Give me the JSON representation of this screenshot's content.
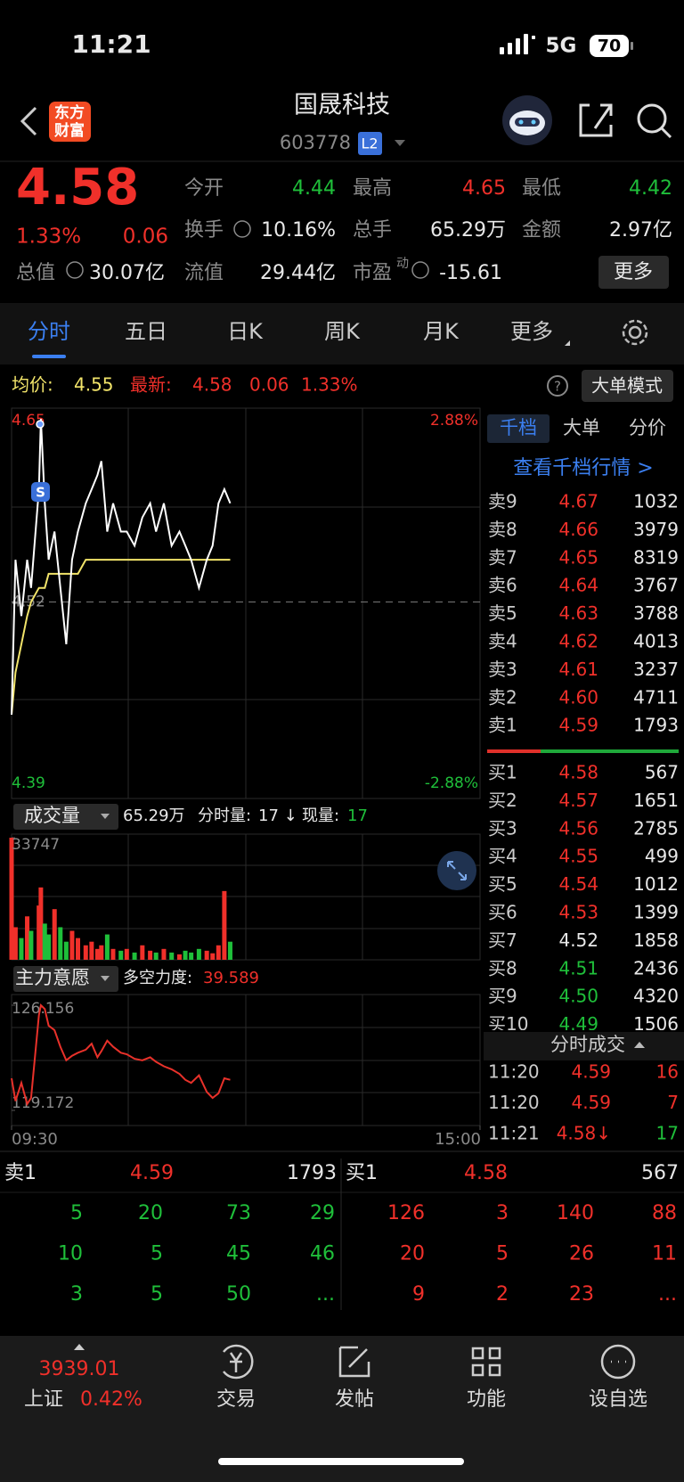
{
  "status": {
    "time": "11:21",
    "network": "5G",
    "battery": "70"
  },
  "header": {
    "logo": [
      "东方",
      "财富"
    ],
    "name": "国晟科技",
    "code": "603778",
    "badge": "L2"
  },
  "quote": {
    "price": "4.58",
    "pct": "1.33%",
    "change": "0.06",
    "rows": [
      [
        {
          "label": "今开",
          "value": 4.44
        },
        {
          "label": "最高",
          "value": 4.65
        },
        {
          "label": "最低",
          "value": 4.42
        }
      ],
      [
        {
          "label": "换手",
          "value": "10.16%"
        },
        {
          "label": "总手",
          "value": "65.29万"
        },
        {
          "label": "金额",
          "value": "2.97亿"
        }
      ]
    ],
    "row3": [
      {
        "label": "总值",
        "value": "30.07亿"
      },
      {
        "label": "流值",
        "value": "29.44亿"
      },
      {
        "label": "市盈",
        "sup": "动",
        "value": "-15.61"
      }
    ],
    "more": "更多"
  },
  "tabs": [
    "分时",
    "五日",
    "日K",
    "周K",
    "月K",
    "更多"
  ],
  "info": {
    "avg_label": "均价:",
    "avg": "4.55",
    "last_label": "最新:",
    "last": "4.58",
    "change": "0.06",
    "pct": "1.33%",
    "mode": "大单模式"
  },
  "chart_data": [
    {
      "type": "line",
      "x": [
        0,
        2,
        5,
        8,
        10,
        14,
        15,
        17,
        19,
        22,
        25,
        28,
        31,
        34,
        38,
        41,
        44,
        46,
        49,
        52,
        56,
        59,
        63,
        67,
        71,
        74,
        78,
        82,
        86,
        89,
        92,
        96,
        100,
        103,
        106,
        109,
        112
      ],
      "xlim": [
        0,
        240
      ],
      "ylim": [
        4.39,
        4.65
      ],
      "yticks": [
        4.65,
        4.52,
        4.39
      ],
      "right_labels": [
        "2.88%",
        "-2.88%"
      ],
      "series": [
        {
          "color": "#ffffff",
          "values": [
            4.44,
            4.55,
            4.51,
            4.55,
            4.53,
            4.6,
            4.65,
            4.59,
            4.55,
            4.57,
            4.53,
            4.49,
            4.55,
            4.57,
            4.59,
            4.6,
            4.61,
            4.62,
            4.57,
            4.59,
            4.57,
            4.57,
            4.56,
            4.58,
            4.59,
            4.57,
            4.59,
            4.56,
            4.57,
            4.56,
            4.55,
            4.53,
            4.55,
            4.56,
            4.59,
            4.6,
            4.59
          ]
        },
        {
          "color": "#f2e46a",
          "values": [
            4.44,
            4.47,
            4.49,
            4.51,
            4.52,
            4.53,
            4.53,
            4.53,
            4.54,
            4.54,
            4.54,
            4.54,
            4.54,
            4.54,
            4.55,
            4.55,
            4.55,
            4.55,
            4.55,
            4.55,
            4.55,
            4.55,
            4.55,
            4.55,
            4.55,
            4.55,
            4.55,
            4.55,
            4.55,
            4.55,
            4.55,
            4.55,
            4.55,
            4.55,
            4.55,
            4.55,
            4.55
          ]
        }
      ]
    },
    {
      "type": "bar",
      "header": {
        "label": "成交量",
        "total": "65.29万",
        "minute_label": "分时量:",
        "minute_value": "17 ↓",
        "now_label": "现量:",
        "now_value": "17"
      },
      "x": [
        0,
        2,
        5,
        8,
        10,
        14,
        15,
        17,
        19,
        22,
        25,
        28,
        31,
        34,
        38,
        41,
        44,
        46,
        49,
        52,
        56,
        59,
        63,
        67,
        71,
        74,
        78,
        82,
        86,
        89,
        92,
        96,
        100,
        103,
        106,
        109,
        112
      ],
      "xlim": [
        0,
        240
      ],
      "ylim": [
        0,
        33747
      ],
      "yticks": [
        33747
      ],
      "up_color": "#f0302a",
      "down_color": "#1fbf3a",
      "values": [
        33747,
        9000,
        6000,
        12000,
        8000,
        15000,
        20000,
        10000,
        7000,
        14000,
        9000,
        5000,
        8000,
        6000,
        4000,
        5000,
        3000,
        4000,
        7000,
        3000,
        2500,
        3000,
        2000,
        4000,
        2500,
        2000,
        3000,
        2000,
        1500,
        2500,
        2000,
        3000,
        2500,
        1800,
        4000,
        19000,
        5000
      ]
    },
    {
      "type": "line",
      "header": {
        "label": "主力意愿",
        "strength_label": "多空力度:",
        "strength": "39.589"
      },
      "x": [
        0,
        2,
        5,
        8,
        10,
        14,
        15,
        17,
        19,
        22,
        25,
        28,
        31,
        34,
        38,
        41,
        44,
        46,
        49,
        52,
        56,
        59,
        63,
        67,
        71,
        74,
        78,
        82,
        86,
        89,
        92,
        96,
        100,
        103,
        106,
        109,
        112
      ],
      "xlim": [
        0,
        240
      ],
      "xticks": [
        {
          "value": 0,
          "label": "09:30"
        },
        {
          "value": 240,
          "label": "15:00"
        }
      ],
      "ylim": [
        119.172,
        126.156
      ],
      "yticks": [
        126.156,
        119.172
      ],
      "color": "#e8312a",
      "values": [
        121.3,
        119.8,
        121.0,
        119.6,
        120.0,
        125.5,
        126.156,
        125.9,
        124.8,
        124.5,
        123.4,
        122.5,
        122.8,
        123.0,
        123.2,
        123.6,
        122.7,
        123.1,
        123.8,
        123.4,
        123.0,
        122.9,
        122.6,
        122.5,
        122.7,
        122.4,
        122.1,
        121.9,
        121.6,
        121.2,
        121.0,
        121.5,
        120.4,
        120.0,
        120.3,
        121.3,
        121.2
      ]
    }
  ],
  "book": {
    "tabs": [
      "千档",
      "大单",
      "分价"
    ],
    "link": "查看千档行情 >",
    "sell": [
      {
        "label": "卖9",
        "price": "4.67",
        "vol": "1032"
      },
      {
        "label": "卖8",
        "price": "4.66",
        "vol": "3979"
      },
      {
        "label": "卖7",
        "price": "4.65",
        "vol": "8319"
      },
      {
        "label": "卖6",
        "price": "4.64",
        "vol": "3767"
      },
      {
        "label": "卖5",
        "price": "4.63",
        "vol": "3788"
      },
      {
        "label": "卖4",
        "price": "4.62",
        "vol": "4013"
      },
      {
        "label": "卖3",
        "price": "4.61",
        "vol": "3237"
      },
      {
        "label": "卖2",
        "price": "4.60",
        "vol": "4711"
      },
      {
        "label": "卖1",
        "price": "4.59",
        "vol": "1793"
      }
    ],
    "buy": [
      {
        "label": "买1",
        "price": "4.58",
        "vol": "567"
      },
      {
        "label": "买2",
        "price": "4.57",
        "vol": "1651"
      },
      {
        "label": "买3",
        "price": "4.56",
        "vol": "2785"
      },
      {
        "label": "买4",
        "price": "4.55",
        "vol": "499"
      },
      {
        "label": "买5",
        "price": "4.54",
        "vol": "1012"
      },
      {
        "label": "买6",
        "price": "4.53",
        "vol": "1399"
      },
      {
        "label": "买7",
        "price": "4.52",
        "vol": "1858"
      },
      {
        "label": "买8",
        "price": "4.51",
        "vol": "2436"
      },
      {
        "label": "买9",
        "price": "4.50",
        "vol": "4320"
      },
      {
        "label": "买10",
        "price": "4.49",
        "vol": "1506"
      }
    ],
    "trades_title": "分时成交",
    "trades": [
      {
        "time": "11:20",
        "price": "4.59",
        "vol": "16",
        "color": "#f0302a"
      },
      {
        "time": "11:20",
        "price": "4.59",
        "vol": "7",
        "color": "#f0302a"
      },
      {
        "time": "11:21",
        "price": "4.58↓",
        "vol": "17",
        "color": "#1fbf3a"
      }
    ]
  },
  "panel": {
    "sell": {
      "label": "卖1",
      "price": "4.59",
      "vol": "1793",
      "rows": [
        [
          "5",
          "20",
          "73",
          "29"
        ],
        [
          "10",
          "5",
          "45",
          "46"
        ],
        [
          "3",
          "5",
          "50",
          "..."
        ]
      ]
    },
    "buy": {
      "label": "买1",
      "price": "4.58",
      "vol": "567",
      "rows": [
        [
          "126",
          "3",
          "140",
          "88"
        ],
        [
          "20",
          "5",
          "26",
          "11"
        ],
        [
          "9",
          "2",
          "23",
          "..."
        ]
      ]
    }
  },
  "nav": {
    "index_value": "3939.01",
    "index_name": "上证",
    "index_pct": "0.42%",
    "items": [
      "交易",
      "发帖",
      "功能",
      "设自选"
    ]
  }
}
